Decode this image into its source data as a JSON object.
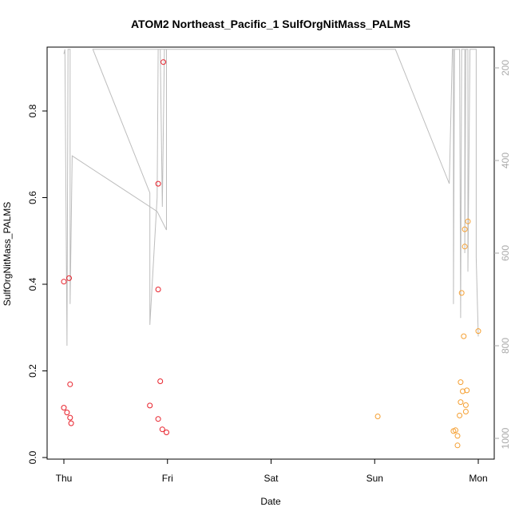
{
  "chart_data": {
    "type": "scatter",
    "title": "ATOM2 Northeast_Pacific_1 SulfOrgNitMass_PALMS",
    "xlabel": "Date",
    "ylabel": "SulfOrgNitMass_PALMS",
    "x_tick_labels": [
      "Thu",
      "Fri",
      "Sat",
      "Sun",
      "Mon"
    ],
    "y_ticks": [
      0.0,
      0.2,
      0.4,
      0.6,
      0.8
    ],
    "y_tick_labels": [
      "0.0",
      "0.2",
      "0.4",
      "0.6",
      "0.8"
    ],
    "ylim": [
      -0.005,
      0.95
    ],
    "y2_ticks": [
      200,
      400,
      600,
      800,
      1000
    ],
    "y2_tick_labels": [
      "200",
      "400",
      "600",
      "800",
      "1000"
    ],
    "y2lim": [
      1045,
      175
    ],
    "xlim_days": [
      -0.2,
      4.2
    ],
    "grid": false,
    "colors": {
      "red": "#e8212b",
      "orange": "#f5a033",
      "pressure_line": "#bdbdbd",
      "axis": "#000000",
      "y2_axis": "#aaaaaa"
    },
    "series": [
      {
        "color": "red",
        "points": [
          {
            "x": 0.0,
            "y": 0.406
          },
          {
            "x": 0.05,
            "y": 0.414
          },
          {
            "x": 0.06,
            "y": 0.169
          },
          {
            "x": 0.0,
            "y": 0.115
          },
          {
            "x": 0.03,
            "y": 0.104
          },
          {
            "x": 0.06,
            "y": 0.092
          },
          {
            "x": 0.07,
            "y": 0.079
          },
          {
            "x": 0.83,
            "y": 0.12
          },
          {
            "x": 0.91,
            "y": 0.632
          },
          {
            "x": 0.91,
            "y": 0.388
          },
          {
            "x": 0.93,
            "y": 0.176
          },
          {
            "x": 0.91,
            "y": 0.089
          },
          {
            "x": 0.95,
            "y": 0.065
          },
          {
            "x": 0.99,
            "y": 0.058
          },
          {
            "x": 0.96,
            "y": 0.913
          }
        ]
      },
      {
        "color": "orange",
        "points": [
          {
            "x": 3.03,
            "y": 0.095
          },
          {
            "x": 3.76,
            "y": 0.061
          },
          {
            "x": 3.78,
            "y": 0.063
          },
          {
            "x": 3.8,
            "y": 0.05
          },
          {
            "x": 3.8,
            "y": 0.028
          },
          {
            "x": 3.82,
            "y": 0.097
          },
          {
            "x": 3.83,
            "y": 0.128
          },
          {
            "x": 3.83,
            "y": 0.174
          },
          {
            "x": 3.84,
            "y": 0.38
          },
          {
            "x": 3.85,
            "y": 0.153
          },
          {
            "x": 3.86,
            "y": 0.28
          },
          {
            "x": 3.87,
            "y": 0.487
          },
          {
            "x": 3.87,
            "y": 0.527
          },
          {
            "x": 3.88,
            "y": 0.121
          },
          {
            "x": 3.88,
            "y": 0.106
          },
          {
            "x": 3.89,
            "y": 0.155
          },
          {
            "x": 3.9,
            "y": 0.545
          },
          {
            "x": 4.0,
            "y": 0.292
          }
        ]
      }
    ],
    "pressure_line": [
      {
        "x": 0.0,
        "p": 170
      },
      {
        "x": 0.01,
        "p": 160
      },
      {
        "x": 0.03,
        "p": 800
      },
      {
        "x": 0.04,
        "p": 160
      },
      {
        "x": 0.06,
        "p": 160
      },
      {
        "x": 0.06,
        "p": 710
      },
      {
        "x": 0.08,
        "p": 390
      },
      {
        "x": 0.9,
        "p": 510
      },
      {
        "x": 0.99,
        "p": 550
      },
      {
        "x": 0.99,
        "p": 160
      },
      {
        "x": 0.97,
        "p": 160
      },
      {
        "x": 0.95,
        "p": 500
      },
      {
        "x": 0.93,
        "p": 160
      },
      {
        "x": 0.91,
        "p": 160
      },
      {
        "x": 0.9,
        "p": 480
      },
      {
        "x": 0.83,
        "p": 755
      },
      {
        "x": 0.83,
        "p": 470
      },
      {
        "x": 0.28,
        "p": 160
      },
      {
        "x": 3.2,
        "p": 160
      },
      {
        "x": 3.72,
        "p": 450
      },
      {
        "x": 3.75,
        "p": 160
      },
      {
        "x": 3.76,
        "p": 160
      },
      {
        "x": 3.76,
        "p": 710
      },
      {
        "x": 3.77,
        "p": 160
      },
      {
        "x": 3.82,
        "p": 160
      },
      {
        "x": 3.83,
        "p": 740
      },
      {
        "x": 3.84,
        "p": 160
      },
      {
        "x": 3.87,
        "p": 160
      },
      {
        "x": 3.87,
        "p": 600
      },
      {
        "x": 3.88,
        "p": 160
      },
      {
        "x": 3.9,
        "p": 160
      },
      {
        "x": 3.9,
        "p": 640
      },
      {
        "x": 3.92,
        "p": 160
      },
      {
        "x": 3.98,
        "p": 160
      },
      {
        "x": 3.98,
        "p": 610
      },
      {
        "x": 4.0,
        "p": 780
      }
    ]
  }
}
